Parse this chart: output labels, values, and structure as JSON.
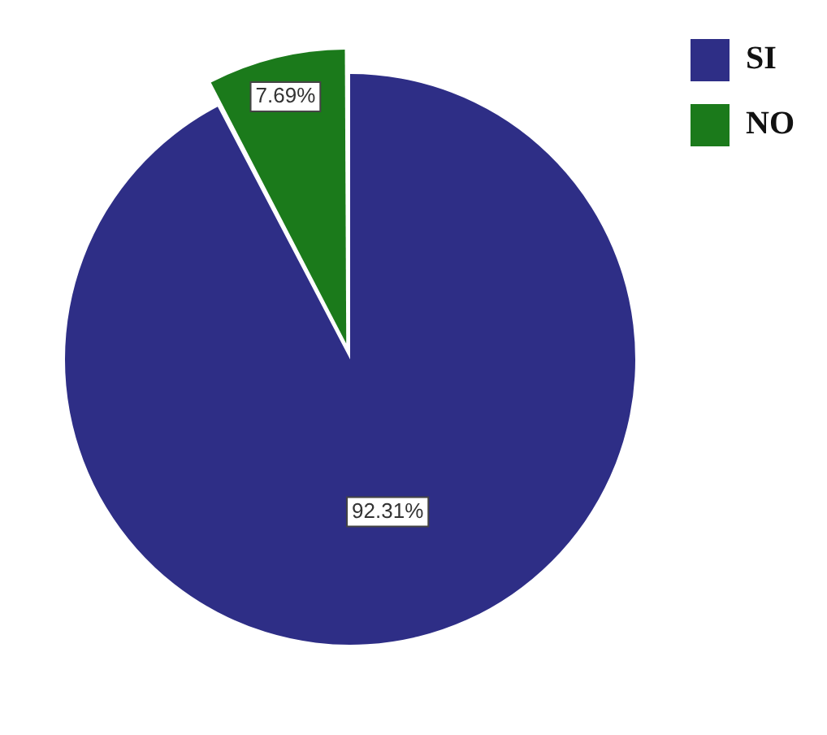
{
  "chart_data": {
    "type": "pie",
    "categories": [
      "SI",
      "NO"
    ],
    "values": [
      92.31,
      7.69
    ],
    "colors": [
      "#2e2e86",
      "#1b7a1b"
    ],
    "value_labels": [
      "92.31%",
      "7.69%"
    ],
    "legend": "top right"
  }
}
